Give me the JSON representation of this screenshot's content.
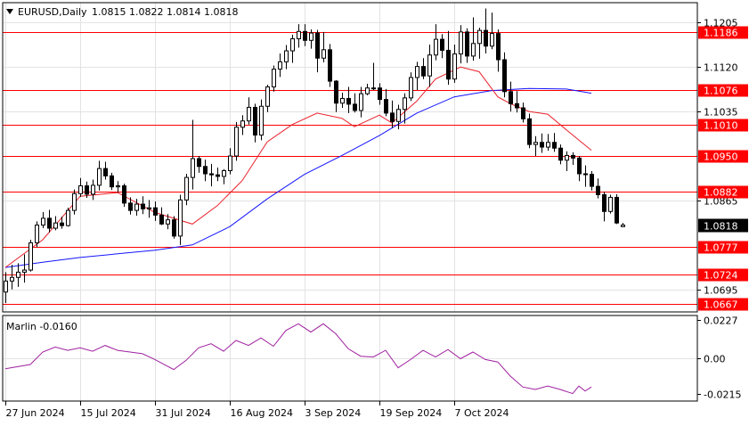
{
  "header": {
    "symbol_timeframe": "EURUSD,Daily",
    "ohlc": "1.0815 1.0822 1.0814 1.0818"
  },
  "indicator": {
    "label": "Marlin -0.0160",
    "ticks": [
      "0.0227",
      "0.00",
      "-0.0215"
    ]
  },
  "price_axis": {
    "ticks": [
      "1.1205",
      "1.1120",
      "1.1035",
      "1.0865",
      "1.0695"
    ],
    "current_price": "1.0818"
  },
  "levels": [
    "1.1186",
    "1.1076",
    "1.1010",
    "1.0950",
    "1.0882",
    "1.0777",
    "1.0724",
    "1.0667"
  ],
  "date_axis": [
    "27 Jun 2024",
    "15 Jul 2024",
    "31 Jul 2024",
    "16 Aug 2024",
    "3 Sep 2024",
    "19 Sep 2024",
    "7 Oct 2024"
  ],
  "colors": {
    "bull": "#ffffff",
    "bear": "#000000",
    "level_line": "#ff0000",
    "ma_slow": "#1515ff",
    "ma_fast": "#e8202a",
    "oscillator": "#a020a0",
    "grid": "#e3e3e3",
    "current_price_box": "#000000"
  },
  "chart_data": {
    "type": "candlestick",
    "price_range": [
      1.0652,
      1.1243
    ],
    "oscillator_range": [
      -0.026,
      0.0255
    ],
    "candles": [
      [
        1.069,
        1.0728,
        1.0669,
        1.0711
      ],
      [
        1.0711,
        1.0742,
        1.0695,
        1.0718
      ],
      [
        1.0718,
        1.0745,
        1.07,
        1.0728
      ],
      [
        1.0728,
        1.0762,
        1.0708,
        1.0732
      ],
      [
        1.0732,
        1.079,
        1.0729,
        1.0784
      ],
      [
        1.0784,
        1.0825,
        1.0776,
        1.0818
      ],
      [
        1.0818,
        1.0843,
        1.0812,
        1.0831
      ],
      [
        1.0831,
        1.0847,
        1.0804,
        1.0812
      ],
      [
        1.0812,
        1.0835,
        1.0808,
        1.0822
      ],
      [
        1.0822,
        1.0834,
        1.0811,
        1.0817
      ],
      [
        1.0817,
        1.0851,
        1.0815,
        1.0846
      ],
      [
        1.0846,
        1.0886,
        1.0838,
        1.0878
      ],
      [
        1.0878,
        1.0908,
        1.0872,
        1.0893
      ],
      [
        1.0893,
        1.0901,
        1.087,
        1.0877
      ],
      [
        1.0877,
        1.0905,
        1.0866,
        1.0894
      ],
      [
        1.0894,
        1.0941,
        1.0884,
        1.0926
      ],
      [
        1.0926,
        1.0939,
        1.0905,
        1.0912
      ],
      [
        1.0912,
        1.0918,
        1.0885,
        1.0891
      ],
      [
        1.0891,
        1.0902,
        1.088,
        1.0893
      ],
      [
        1.0893,
        1.0897,
        1.0853,
        1.086
      ],
      [
        1.086,
        1.0871,
        1.0838,
        1.0846
      ],
      [
        1.0846,
        1.0868,
        1.0836,
        1.0858
      ],
      [
        1.0858,
        1.0873,
        1.0839,
        1.0849
      ],
      [
        1.0849,
        1.0866,
        1.0832,
        1.0851
      ],
      [
        1.0851,
        1.0863,
        1.0826,
        1.0837
      ],
      [
        1.0837,
        1.0852,
        1.0818,
        1.082
      ],
      [
        1.082,
        1.0839,
        1.081,
        1.0828
      ],
      [
        1.0828,
        1.0835,
        1.0792,
        1.0797
      ],
      [
        1.0797,
        1.0876,
        1.078,
        1.0866
      ],
      [
        1.0866,
        1.0916,
        1.0856,
        1.0909
      ],
      [
        1.0909,
        1.1019,
        1.0886,
        1.0945
      ],
      [
        1.0945,
        1.095,
        1.0918,
        1.093
      ],
      [
        1.093,
        1.0943,
        1.0902,
        1.0916
      ],
      [
        1.0916,
        1.0935,
        1.0892,
        1.0914
      ],
      [
        1.0914,
        1.0928,
        1.0902,
        1.0911
      ],
      [
        1.0911,
        1.0925,
        1.0896,
        1.0922
      ],
      [
        1.0922,
        1.0965,
        1.0915,
        1.095
      ],
      [
        1.095,
        1.1015,
        1.0941,
        1.1005
      ],
      [
        1.1005,
        1.1028,
        1.099,
        1.1017
      ],
      [
        1.1017,
        1.1062,
        1.101,
        1.1043
      ],
      [
        1.1043,
        1.105,
        1.0976,
        1.099
      ],
      [
        1.099,
        1.1058,
        1.098,
        1.1045
      ],
      [
        1.1045,
        1.1086,
        1.1034,
        1.1082
      ],
      [
        1.1082,
        1.1123,
        1.1073,
        1.1116
      ],
      [
        1.1116,
        1.1146,
        1.1101,
        1.113
      ],
      [
        1.113,
        1.1162,
        1.1116,
        1.1151
      ],
      [
        1.1151,
        1.1182,
        1.1128,
        1.1174
      ],
      [
        1.1174,
        1.1202,
        1.1157,
        1.1188
      ],
      [
        1.1188,
        1.1202,
        1.116,
        1.1171
      ],
      [
        1.1171,
        1.1192,
        1.1155,
        1.1185
      ],
      [
        1.1185,
        1.1191,
        1.111,
        1.1137
      ],
      [
        1.1137,
        1.1187,
        1.1129,
        1.1153
      ],
      [
        1.1153,
        1.1164,
        1.1082,
        1.1093
      ],
      [
        1.1093,
        1.1095,
        1.1034,
        1.1051
      ],
      [
        1.1051,
        1.1071,
        1.1042,
        1.106
      ],
      [
        1.106,
        1.1082,
        1.1032,
        1.1049
      ],
      [
        1.1049,
        1.107,
        1.1033,
        1.1037
      ],
      [
        1.1037,
        1.1082,
        1.1024,
        1.1069
      ],
      [
        1.1069,
        1.1088,
        1.1066,
        1.108
      ],
      [
        1.108,
        1.1128,
        1.1076,
        1.108
      ],
      [
        1.108,
        1.1089,
        1.1048,
        1.1058
      ],
      [
        1.1058,
        1.1078,
        1.1026,
        1.1032
      ],
      [
        1.1032,
        1.1056,
        1.1004,
        1.1016
      ],
      [
        1.1016,
        1.1048,
        1.1001,
        1.1039
      ],
      [
        1.1039,
        1.107,
        1.1012,
        1.1061
      ],
      [
        1.1061,
        1.111,
        1.1055,
        1.11
      ],
      [
        1.11,
        1.113,
        1.1076,
        1.1121
      ],
      [
        1.1121,
        1.1137,
        1.1097,
        1.1103
      ],
      [
        1.1103,
        1.1163,
        1.1082,
        1.1143
      ],
      [
        1.1143,
        1.1202,
        1.1133,
        1.1173
      ],
      [
        1.1173,
        1.1183,
        1.1137,
        1.1152
      ],
      [
        1.1152,
        1.1189,
        1.1086,
        1.1097
      ],
      [
        1.1097,
        1.1163,
        1.109,
        1.1145
      ],
      [
        1.1145,
        1.12,
        1.1127,
        1.1187
      ],
      [
        1.1187,
        1.1194,
        1.1128,
        1.1141
      ],
      [
        1.1141,
        1.1215,
        1.1132,
        1.1165
      ],
      [
        1.1165,
        1.1195,
        1.1136,
        1.119
      ],
      [
        1.119,
        1.1232,
        1.1146,
        1.116
      ],
      [
        1.116,
        1.1224,
        1.1154,
        1.1184
      ],
      [
        1.1184,
        1.1192,
        1.1111,
        1.1134
      ],
      [
        1.1134,
        1.1148,
        1.1062,
        1.1073
      ],
      [
        1.1073,
        1.1092,
        1.1035,
        1.105
      ],
      [
        1.105,
        1.1074,
        1.1033,
        1.1042
      ],
      [
        1.1042,
        1.1052,
        1.1014,
        1.1021
      ],
      [
        1.1021,
        1.1031,
        1.0965,
        1.0972
      ],
      [
        1.0972,
        1.0988,
        1.095,
        1.0976
      ],
      [
        1.0976,
        1.0993,
        1.0956,
        1.0967
      ],
      [
        1.0967,
        1.0992,
        1.096,
        1.0976
      ],
      [
        1.0976,
        1.0994,
        1.0958,
        1.0965
      ],
      [
        1.0965,
        1.0972,
        1.0934,
        1.0942
      ],
      [
        1.0942,
        1.0959,
        1.0921,
        1.0951
      ],
      [
        1.0951,
        1.0957,
        1.0933,
        1.0946
      ],
      [
        1.0946,
        1.095,
        1.0902,
        1.0916
      ],
      [
        1.0916,
        1.0932,
        1.0891,
        1.0915
      ],
      [
        1.0915,
        1.0921,
        1.0884,
        1.0892
      ],
      [
        1.0892,
        1.0907,
        1.0869,
        1.0876
      ],
      [
        1.0876,
        1.0882,
        1.0825,
        1.0844
      ],
      [
        1.0844,
        1.0876,
        1.084,
        1.0871
      ],
      [
        1.0871,
        1.0877,
        1.082,
        1.0822
      ],
      [
        1.0815,
        1.0822,
        1.0814,
        1.0818
      ]
    ],
    "ma_slow": [
      [
        0,
        1.0737
      ],
      [
        6,
        1.0747
      ],
      [
        12,
        1.0756
      ],
      [
        18,
        1.0763
      ],
      [
        24,
        1.077
      ],
      [
        30,
        1.078
      ],
      [
        36,
        1.0815
      ],
      [
        42,
        1.0868
      ],
      [
        48,
        1.0915
      ],
      [
        54,
        1.0951
      ],
      [
        60,
        1.0989
      ],
      [
        66,
        1.1032
      ],
      [
        72,
        1.1063
      ],
      [
        78,
        1.1075
      ],
      [
        84,
        1.1079
      ],
      [
        90,
        1.1078
      ],
      [
        94,
        1.107
      ]
    ],
    "ma_fast": [
      [
        0,
        1.0737
      ],
      [
        6,
        1.079
      ],
      [
        12,
        1.0873
      ],
      [
        18,
        1.088
      ],
      [
        24,
        1.0842
      ],
      [
        30,
        1.082
      ],
      [
        34,
        1.0855
      ],
      [
        38,
        1.0903
      ],
      [
        42,
        1.0977
      ],
      [
        46,
        1.101
      ],
      [
        50,
        1.1032
      ],
      [
        54,
        1.1022
      ],
      [
        56,
        1.1006
      ],
      [
        60,
        1.1028
      ],
      [
        62,
        1.1013
      ],
      [
        66,
        1.1055
      ],
      [
        69,
        1.1097
      ],
      [
        73,
        1.112
      ],
      [
        76,
        1.1111
      ],
      [
        79,
        1.1063
      ],
      [
        81,
        1.105
      ],
      [
        84,
        1.1035
      ],
      [
        87,
        1.103
      ],
      [
        90,
        1.1
      ],
      [
        94,
        1.0961
      ]
    ],
    "oscillator": [
      [
        0,
        -0.0065
      ],
      [
        4,
        -0.004
      ],
      [
        6,
        0.0035
      ],
      [
        8,
        0.0065
      ],
      [
        10,
        0.0045
      ],
      [
        12,
        0.006
      ],
      [
        14,
        0.004
      ],
      [
        16,
        0.0075
      ],
      [
        18,
        0.0045
      ],
      [
        20,
        0.0035
      ],
      [
        22,
        0.0025
      ],
      [
        24,
        -0.001
      ],
      [
        26,
        -0.005
      ],
      [
        27,
        -0.007
      ],
      [
        29,
        -0.0015
      ],
      [
        31,
        0.006
      ],
      [
        33,
        0.0085
      ],
      [
        35,
        0.004
      ],
      [
        37,
        0.0105
      ],
      [
        39,
        0.0075
      ],
      [
        41,
        0.012
      ],
      [
        43,
        0.007
      ],
      [
        45,
        0.0165
      ],
      [
        47,
        0.0205
      ],
      [
        49,
        0.0155
      ],
      [
        51,
        0.0205
      ],
      [
        53,
        0.0145
      ],
      [
        55,
        0.0055
      ],
      [
        57,
        0.001
      ],
      [
        59,
        0.0005
      ],
      [
        61,
        0.0045
      ],
      [
        63,
        -0.006
      ],
      [
        65,
        -0.001
      ],
      [
        67,
        0.0045
      ],
      [
        69,
        0.0005
      ],
      [
        71,
        0.005
      ],
      [
        73,
        -0.0005
      ],
      [
        75,
        0.0035
      ],
      [
        77,
        -0.001
      ],
      [
        79,
        -0.0025
      ],
      [
        81,
        -0.011
      ],
      [
        83,
        -0.0175
      ],
      [
        85,
        -0.019
      ],
      [
        87,
        -0.017
      ],
      [
        89,
        -0.019
      ],
      [
        91,
        -0.0215
      ],
      [
        92,
        -0.017
      ],
      [
        93,
        -0.02
      ],
      [
        94,
        -0.0175
      ]
    ],
    "x_ticks": [
      {
        "label": "27 Jun 2024",
        "index": 0
      },
      {
        "label": "15 Jul 2024",
        "index": 12
      },
      {
        "label": "31 Jul 2024",
        "index": 24
      },
      {
        "label": "16 Aug 2024",
        "index": 36
      },
      {
        "label": "3 Sep 2024",
        "index": 48
      },
      {
        "label": "19 Sep 2024",
        "index": 60
      },
      {
        "label": "7 Oct 2024",
        "index": 72
      }
    ],
    "y_ticks": [
      1.1205,
      1.112,
      1.1035,
      1.0865,
      1.0695
    ],
    "levels": [
      1.1186,
      1.1076,
      1.101,
      1.095,
      1.0882,
      1.0777,
      1.0724,
      1.0667
    ],
    "current_price": 1.0818,
    "oscillator_ticks": [
      0.0227,
      0.0,
      -0.0215
    ],
    "oscillator_value": -0.016,
    "grid": true
  }
}
